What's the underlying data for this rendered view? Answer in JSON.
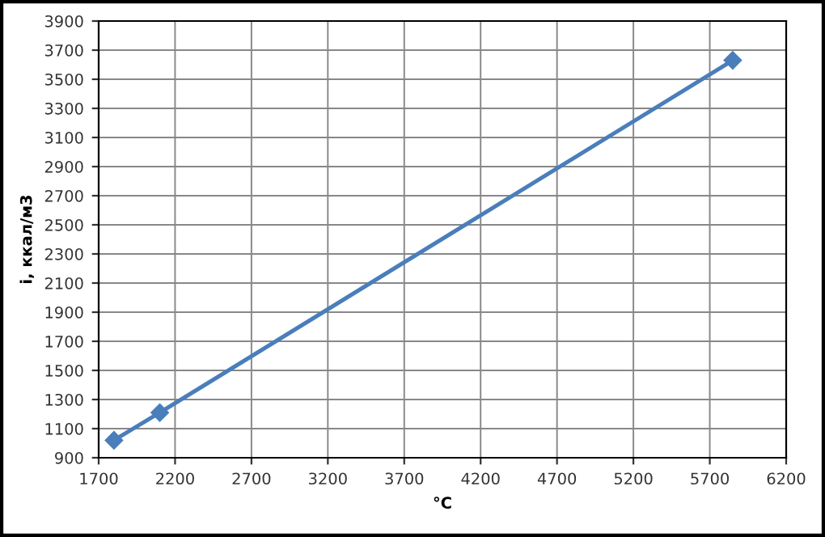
{
  "chart_data": {
    "type": "line",
    "xlabel": "°C",
    "ylabel": "i, ккал/м3",
    "x": [
      1800,
      2100,
      5850
    ],
    "series": [
      {
        "color": "#4a7ebb",
        "values": [
          1020,
          1210,
          3630
        ]
      }
    ],
    "xlim": [
      1700,
      6200
    ],
    "xticks": [
      1700,
      2200,
      2700,
      3200,
      3700,
      4200,
      4700,
      5200,
      5700,
      6200
    ],
    "ylim": [
      900,
      3900
    ],
    "yticks": [
      900,
      1100,
      1300,
      1500,
      1700,
      1900,
      2100,
      2300,
      2500,
      2700,
      2900,
      3100,
      3300,
      3500,
      3700,
      3900
    ],
    "grid": true,
    "marker": "diamond",
    "line_style": "solid",
    "legend": false
  }
}
